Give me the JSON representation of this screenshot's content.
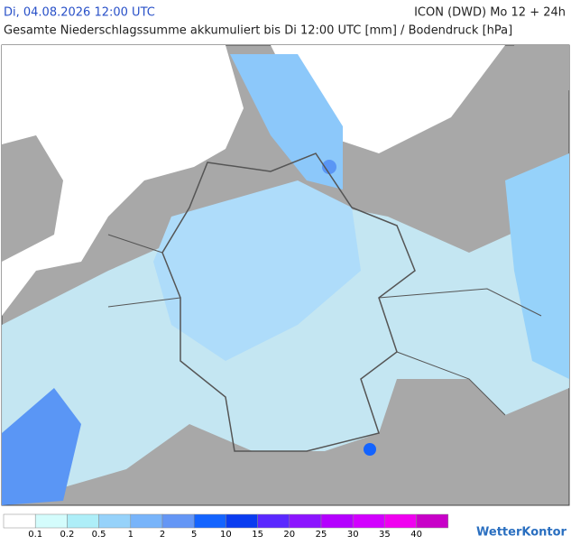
{
  "header": {
    "datetime": "Di, 04.08.2026 12:00 UTC",
    "model": "ICON (DWD) Mo 12 + 24h",
    "title": "Gesamte Niederschlagssumme akkumuliert bis Di 12:00 UTC [mm] / Bodendruck [hPa]"
  },
  "legend": {
    "colors": [
      "#ffffff",
      "#d4fcfc",
      "#aeeef8",
      "#96d2fa",
      "#78b4fa",
      "#6496f5",
      "#1464ff",
      "#0a3cf0",
      "#5a28ff",
      "#8c14ff",
      "#b400ff",
      "#d200ff",
      "#f000f0",
      "#c800c8"
    ],
    "labels": [
      "0.1",
      "0.2",
      "0.5",
      "1",
      "2",
      "5",
      "10",
      "15",
      "20",
      "25",
      "30",
      "35",
      "40"
    ]
  },
  "brand": "WetterKontor"
}
